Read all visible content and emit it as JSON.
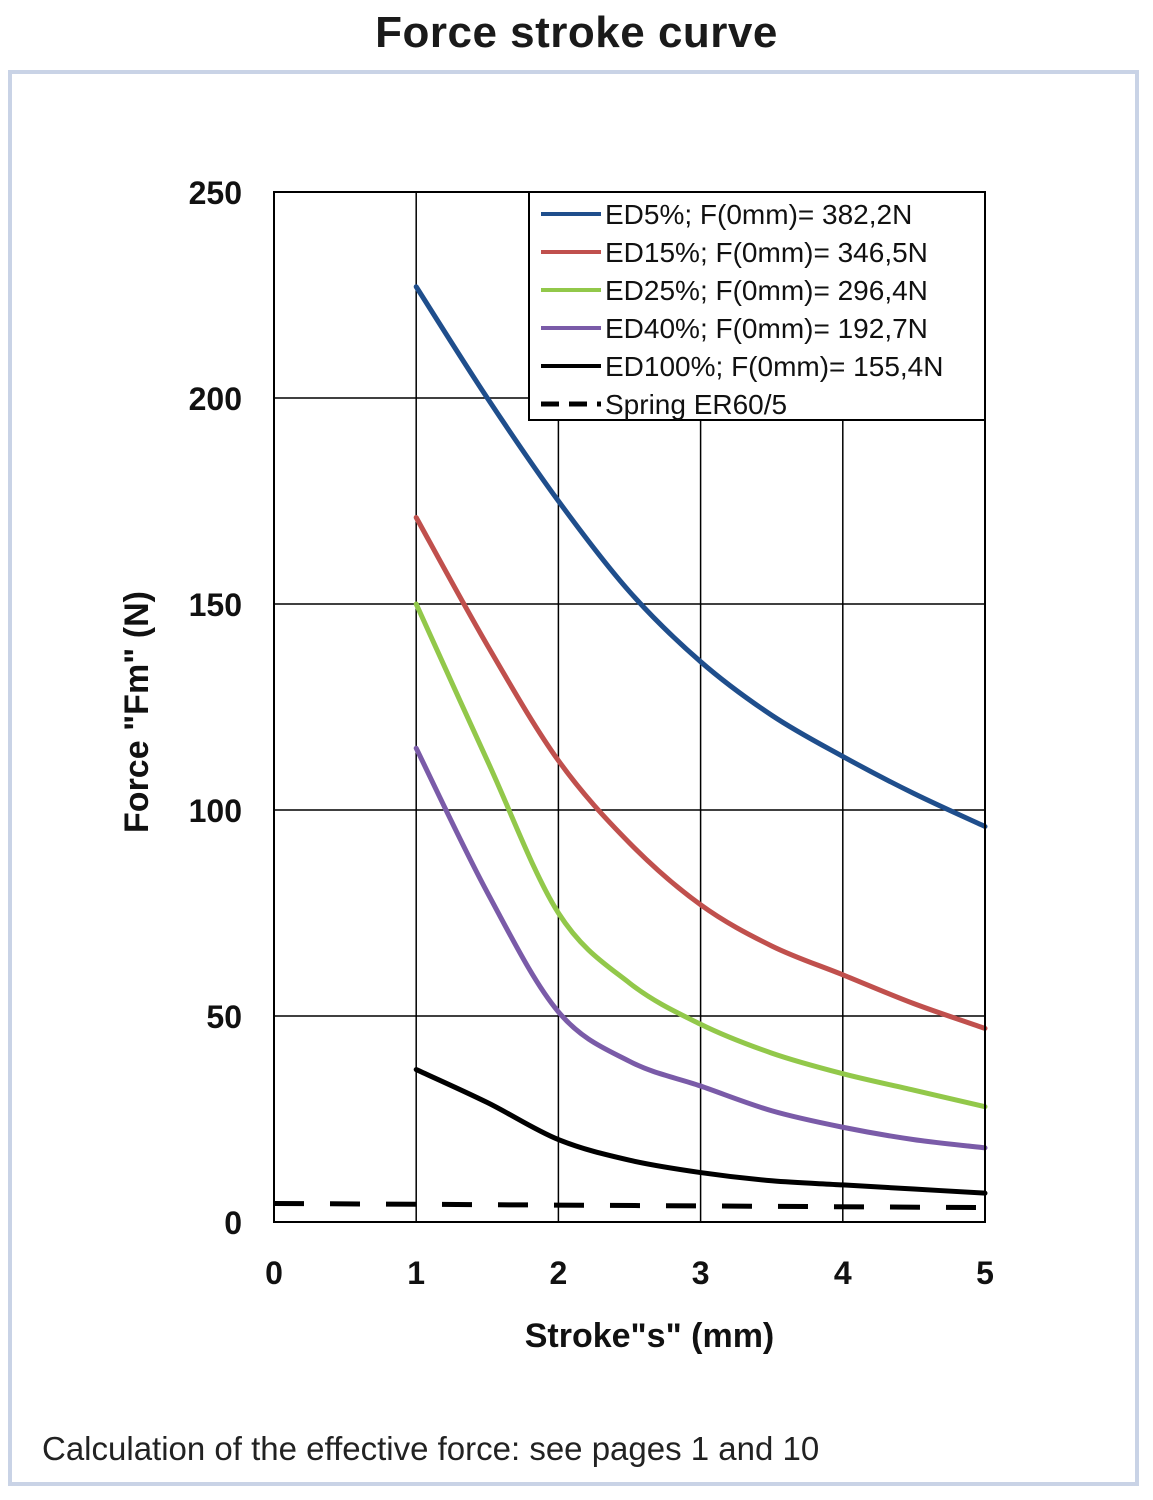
{
  "page": {
    "title": "Force stroke curve",
    "footnote": "Calculation of the effective force: see pages 1 and 10"
  },
  "chart_data": {
    "type": "line",
    "title": "Force stroke curve",
    "xlabel": "Stroke\"s\" (mm)",
    "ylabel": "Force \"Fm\" (N)",
    "xlim": [
      0,
      5
    ],
    "ylim": [
      0,
      250
    ],
    "x_ticks": [
      "0",
      "1",
      "2",
      "3",
      "4",
      "5"
    ],
    "y_ticks": [
      "0",
      "50",
      "100",
      "150",
      "200",
      "250"
    ],
    "grid": true,
    "legend_position": "top-right",
    "series": [
      {
        "name": "ED5%; F(0mm)= 382,2N",
        "color": "#1f4e8c",
        "dash": false,
        "x": [
          1,
          1.5,
          2,
          2.5,
          3,
          3.5,
          4,
          4.5,
          5
        ],
        "y": [
          227,
          200,
          175,
          153,
          136,
          123,
          113,
          104,
          96
        ]
      },
      {
        "name": "ED15%; F(0mm)= 346,5N",
        "color": "#c0504d",
        "dash": false,
        "x": [
          1,
          1.5,
          2,
          2.5,
          3,
          3.5,
          4,
          4.5,
          5
        ],
        "y": [
          171,
          140,
          112,
          92,
          77,
          67,
          60,
          53,
          47
        ]
      },
      {
        "name": "ED25%; F(0mm)= 296,4N",
        "color": "#92c84a",
        "dash": false,
        "x": [
          1,
          1.5,
          2,
          2.5,
          3,
          3.5,
          4,
          4.5,
          5
        ],
        "y": [
          150,
          112,
          75,
          58,
          48,
          41,
          36,
          32,
          28
        ]
      },
      {
        "name": "ED40%; F(0mm)= 192,7N",
        "color": "#7a5ba8",
        "dash": false,
        "x": [
          1,
          1.5,
          2,
          2.5,
          3,
          3.5,
          4,
          4.5,
          5
        ],
        "y": [
          115,
          80,
          51,
          39,
          33,
          27,
          23,
          20,
          18
        ]
      },
      {
        "name": "ED100%; F(0mm)= 155,4N",
        "color": "#000000",
        "dash": false,
        "x": [
          1,
          1.5,
          2,
          2.5,
          3,
          3.5,
          4,
          4.5,
          5
        ],
        "y": [
          37,
          29,
          20,
          15,
          12,
          10,
          9,
          8,
          7
        ]
      },
      {
        "name": "Spring ER60/5",
        "color": "#000000",
        "dash": true,
        "x": [
          0,
          5
        ],
        "y": [
          4.5,
          3.5
        ]
      }
    ]
  }
}
